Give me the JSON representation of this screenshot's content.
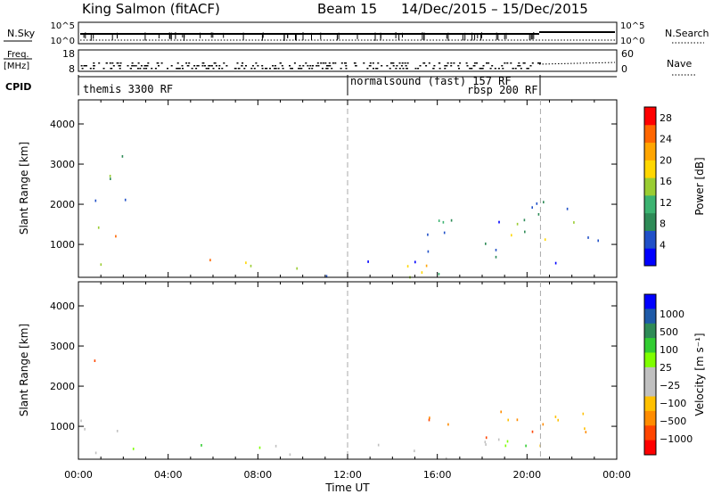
{
  "header": {
    "title": "King Salmon (fitACF)",
    "beam": "Beam 15",
    "date_range": "14/Dec/2015 – 15/Dec/2015"
  },
  "strips": {
    "nsky": {
      "label": "N.Sky",
      "tick_top": "10^5",
      "tick_bottom": "10^0",
      "right_label": "N.Search",
      "right_tick_top": "10^5",
      "right_tick_bottom": "10^0"
    },
    "freq": {
      "label_line1": "Freq.",
      "label_line2": "[MHz]",
      "tick_top": "18",
      "tick_bottom": "8",
      "right_label": "Nave",
      "right_tick_top": "60",
      "right_tick_bottom": "0"
    },
    "cpid": {
      "label": "CPID",
      "modes": [
        {
          "name": "themis 3300 RF",
          "start_h": 0
        },
        {
          "name": "normalsound (fast) 157 RF",
          "start_h": 12
        },
        {
          "name": "rbsp 200 RF",
          "start_h": 20.6
        }
      ]
    }
  },
  "colors": {
    "power": [
      "#0000ff",
      "#2050c8",
      "#2e8b57",
      "#3cb371",
      "#9acd32",
      "#ffd700",
      "#ffa500",
      "#ff6600",
      "#ff0000"
    ],
    "velocity": [
      "#ff0000",
      "#ff4500",
      "#ff8c00",
      "#ffc000",
      "#c0c0c0",
      "#c0c0c0",
      "#7fff00",
      "#32cd32",
      "#2e8b57",
      "#1e5aa8",
      "#0000ff"
    ]
  },
  "chart_data": [
    {
      "type": "heatmap",
      "name": "power",
      "xlabel": "",
      "ylabel": "Slant Range [km]",
      "xlim_hours": [
        0,
        24
      ],
      "ylim": [
        180,
        4600
      ],
      "yticks": [
        1000,
        2000,
        3000,
        4000
      ],
      "colorbar": {
        "label": "Power [dB]",
        "ticks": [
          "4",
          "8",
          "12",
          "16",
          "20",
          "24",
          "28"
        ],
        "range": [
          0,
          30
        ]
      },
      "dashed_lines_hours": [
        12,
        20.6
      ],
      "regions": [
        {
          "t": [
            0.3,
            1.8
          ],
          "r": [
            1050,
            1750
          ],
          "level": "high"
        },
        {
          "t": [
            0.5,
            2.4
          ],
          "r": [
            2100,
            3400
          ],
          "level": "mid"
        },
        {
          "t": [
            0.0,
            24.0
          ],
          "r": [
            200,
            650
          ],
          "level": "mixed"
        },
        {
          "t": [
            14.0,
            17.5
          ],
          "r": [
            250,
            650
          ],
          "level": "high"
        },
        {
          "t": [
            15.5,
            23.5
          ],
          "r": [
            650,
            1700
          ],
          "level": "mid"
        },
        {
          "t": [
            18.5,
            22.5
          ],
          "r": [
            1500,
            2200
          ],
          "level": "low"
        }
      ]
    },
    {
      "type": "heatmap",
      "name": "velocity",
      "xlabel": "Time UT",
      "ylabel": "Slant Range [km]",
      "xlim_hours": [
        0,
        24
      ],
      "ylim": [
        180,
        4600
      ],
      "yticks": [
        1000,
        2000,
        3000,
        4000
      ],
      "xticks": [
        "00:00",
        "04:00",
        "08:00",
        "12:00",
        "16:00",
        "20:00",
        "00:00"
      ],
      "colorbar": {
        "label": "Velocity [m s⁻¹]",
        "ticks": [
          "1000",
          "500",
          "100",
          "25",
          "−25",
          "−100",
          "−500",
          "−1000"
        ]
      },
      "dashed_lines_hours": [
        12,
        20.6
      ],
      "regions": [
        {
          "t": [
            0.0,
            2.2
          ],
          "r": [
            900,
            1500
          ],
          "level": "grey"
        },
        {
          "t": [
            0.3,
            1.5
          ],
          "r": [
            2300,
            2800
          ],
          "level": "orange"
        },
        {
          "t": [
            0.0,
            24.0
          ],
          "r": [
            200,
            600
          ],
          "level": "mixed"
        },
        {
          "t": [
            15.5,
            23.0
          ],
          "r": [
            650,
            1600
          ],
          "level": "orange"
        },
        {
          "t": [
            14.0,
            20.0
          ],
          "r": [
            200,
            700
          ],
          "level": "green"
        }
      ]
    }
  ]
}
